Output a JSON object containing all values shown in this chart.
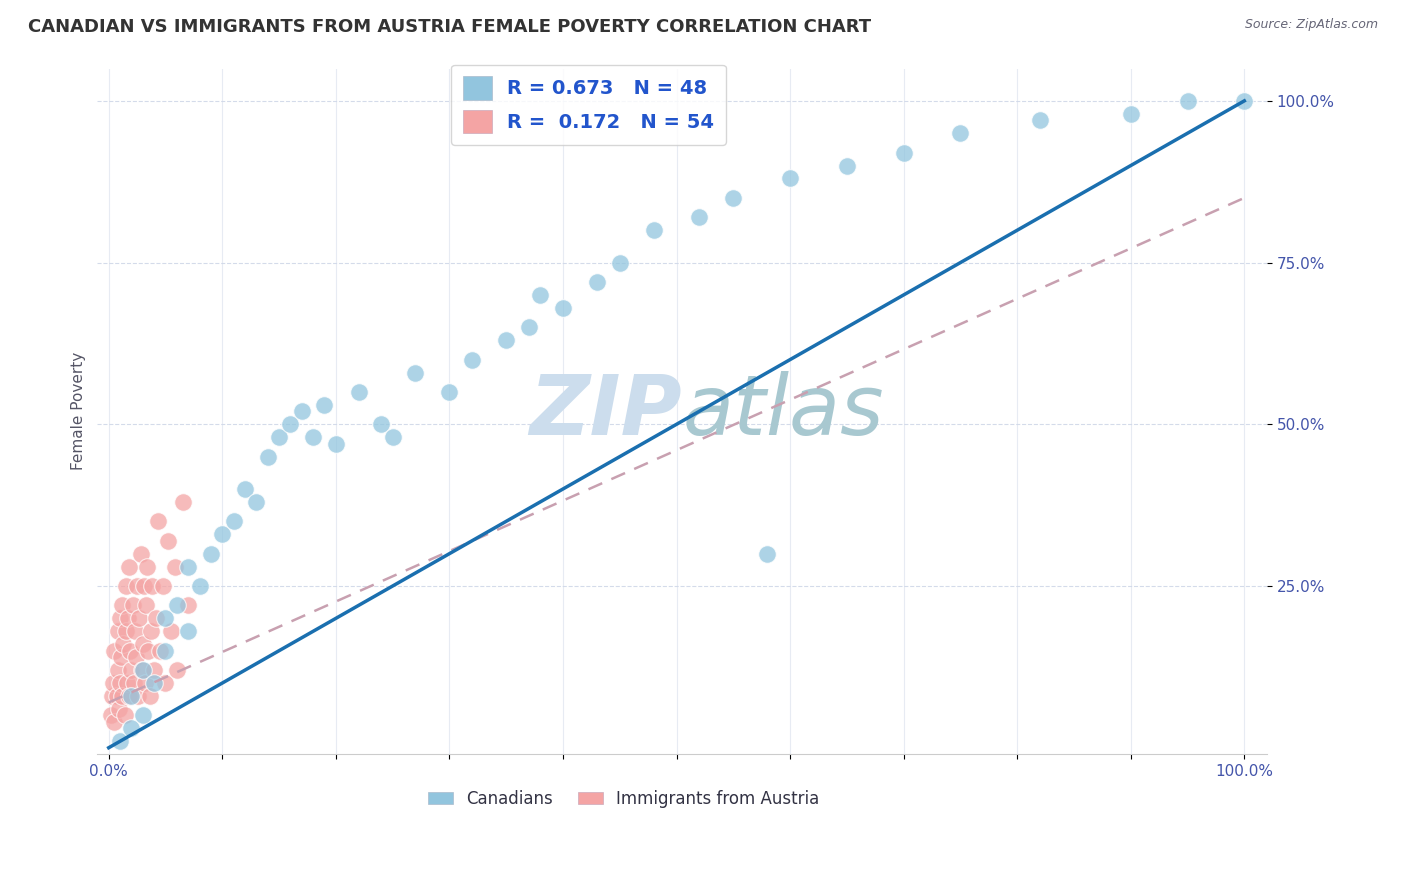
{
  "title": "CANADIAN VS IMMIGRANTS FROM AUSTRIA FEMALE POVERTY CORRELATION CHART",
  "source": "Source: ZipAtlas.com",
  "ylabel": "Female Poverty",
  "watermark": "ZIPatlas",
  "legend_r1": "R = 0.673",
  "legend_n1": "N = 48",
  "legend_r2": "R =  0.172",
  "legend_n2": "N = 54",
  "title_color": "#333333",
  "blue_color": "#92c5de",
  "pink_color": "#f4a4a4",
  "blue_line_color": "#1a6faf",
  "dashed_line_color": "#c8a0b0",
  "watermark_color": "#ccdded",
  "background_color": "#ffffff",
  "canadians_x": [
    0.01,
    0.02,
    0.02,
    0.03,
    0.03,
    0.04,
    0.05,
    0.05,
    0.06,
    0.07,
    0.07,
    0.08,
    0.09,
    0.1,
    0.11,
    0.12,
    0.13,
    0.14,
    0.15,
    0.16,
    0.17,
    0.18,
    0.19,
    0.2,
    0.22,
    0.24,
    0.25,
    0.27,
    0.3,
    0.32,
    0.35,
    0.37,
    0.38,
    0.4,
    0.43,
    0.45,
    0.48,
    0.52,
    0.55,
    0.6,
    0.65,
    0.7,
    0.75,
    0.82,
    0.9,
    0.95,
    1.0,
    0.58
  ],
  "canadians_y": [
    0.01,
    0.03,
    0.08,
    0.05,
    0.12,
    0.1,
    0.15,
    0.2,
    0.22,
    0.18,
    0.28,
    0.25,
    0.3,
    0.33,
    0.35,
    0.4,
    0.38,
    0.45,
    0.48,
    0.5,
    0.52,
    0.48,
    0.53,
    0.47,
    0.55,
    0.5,
    0.48,
    0.58,
    0.55,
    0.6,
    0.63,
    0.65,
    0.7,
    0.68,
    0.72,
    0.75,
    0.8,
    0.82,
    0.85,
    0.88,
    0.9,
    0.92,
    0.95,
    0.97,
    0.98,
    1.0,
    1.0,
    0.3
  ],
  "austria_x": [
    0.002,
    0.003,
    0.004,
    0.005,
    0.005,
    0.007,
    0.008,
    0.008,
    0.009,
    0.01,
    0.01,
    0.011,
    0.012,
    0.012,
    0.013,
    0.014,
    0.015,
    0.015,
    0.016,
    0.017,
    0.018,
    0.018,
    0.019,
    0.02,
    0.021,
    0.022,
    0.023,
    0.024,
    0.025,
    0.026,
    0.027,
    0.028,
    0.029,
    0.03,
    0.031,
    0.032,
    0.033,
    0.034,
    0.035,
    0.036,
    0.037,
    0.038,
    0.04,
    0.042,
    0.043,
    0.045,
    0.048,
    0.05,
    0.052,
    0.055,
    0.058,
    0.06,
    0.065,
    0.07
  ],
  "austria_y": [
    0.05,
    0.08,
    0.1,
    0.04,
    0.15,
    0.08,
    0.12,
    0.18,
    0.06,
    0.1,
    0.2,
    0.14,
    0.08,
    0.22,
    0.16,
    0.05,
    0.18,
    0.25,
    0.1,
    0.2,
    0.08,
    0.28,
    0.15,
    0.12,
    0.22,
    0.1,
    0.18,
    0.14,
    0.25,
    0.08,
    0.2,
    0.3,
    0.12,
    0.16,
    0.25,
    0.1,
    0.22,
    0.28,
    0.15,
    0.08,
    0.18,
    0.25,
    0.12,
    0.2,
    0.35,
    0.15,
    0.25,
    0.1,
    0.32,
    0.18,
    0.28,
    0.12,
    0.38,
    0.22
  ],
  "blue_line_x0": 0.0,
  "blue_line_y0": 0.0,
  "blue_line_x1": 1.0,
  "blue_line_y1": 1.0,
  "dash_line_x0": 0.0,
  "dash_line_y0": 0.07,
  "dash_line_x1": 1.0,
  "dash_line_y1": 0.85,
  "xmin": 0.0,
  "xmax": 1.0,
  "ymin": 0.0,
  "ymax": 1.0
}
